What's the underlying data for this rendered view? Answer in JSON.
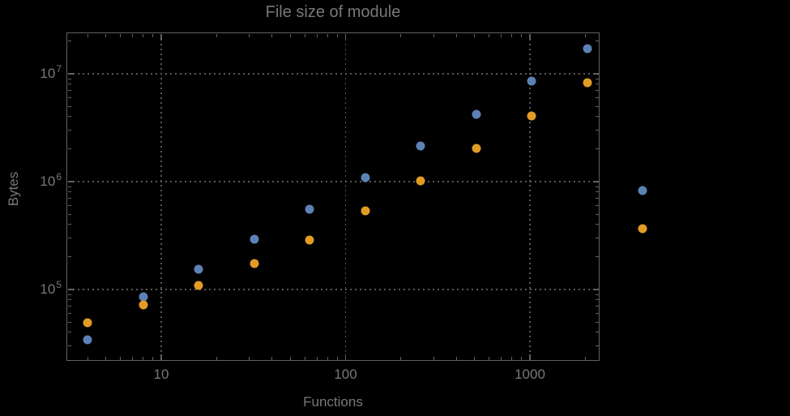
{
  "colors": {
    "background": "#000000",
    "frame": "#616161",
    "grid": "#595959",
    "text": "#787878",
    "series_blue": "#5E81B5",
    "series_orange": "#E19C24"
  },
  "chart_data": {
    "type": "scatter",
    "title": "File size of module",
    "xlabel": "Functions",
    "ylabel": "Bytes",
    "x_scale": "log",
    "y_scale": "log",
    "grid": true,
    "x_range": [
      3.1,
      2390
    ],
    "y_range": [
      21700,
      24100000
    ],
    "x_ticks": [
      {
        "value": 10,
        "label": "10"
      },
      {
        "value": 100,
        "label": "100"
      },
      {
        "value": 1000,
        "label": "1000"
      }
    ],
    "y_ticks": [
      {
        "value": 100000,
        "base": "10",
        "exponent": "5"
      },
      {
        "value": 1000000,
        "base": "10",
        "exponent": "6"
      },
      {
        "value": 10000000,
        "base": "10",
        "exponent": "7"
      }
    ],
    "series": [
      {
        "name": "series-1-blue",
        "color": "#5E81B5",
        "marker": "circle",
        "points": [
          [
            4,
            34000
          ],
          [
            8,
            86000
          ],
          [
            16,
            154000
          ],
          [
            32,
            292000
          ],
          [
            64,
            555000
          ],
          [
            128,
            1090000
          ],
          [
            256,
            2140000
          ],
          [
            512,
            4200000
          ],
          [
            1024,
            8550000
          ],
          [
            2048,
            17100000
          ],
          [
            4096,
            830000
          ]
        ]
      },
      {
        "name": "series-2-orange",
        "color": "#E19C24",
        "marker": "circle",
        "points": [
          [
            4,
            49000
          ],
          [
            8,
            72000
          ],
          [
            16,
            109000
          ],
          [
            32,
            174000
          ],
          [
            64,
            288000
          ],
          [
            128,
            536000
          ],
          [
            256,
            1020000
          ],
          [
            512,
            2030000
          ],
          [
            1024,
            4060000
          ],
          [
            2048,
            8260000
          ],
          [
            4096,
            366000
          ]
        ]
      }
    ]
  }
}
